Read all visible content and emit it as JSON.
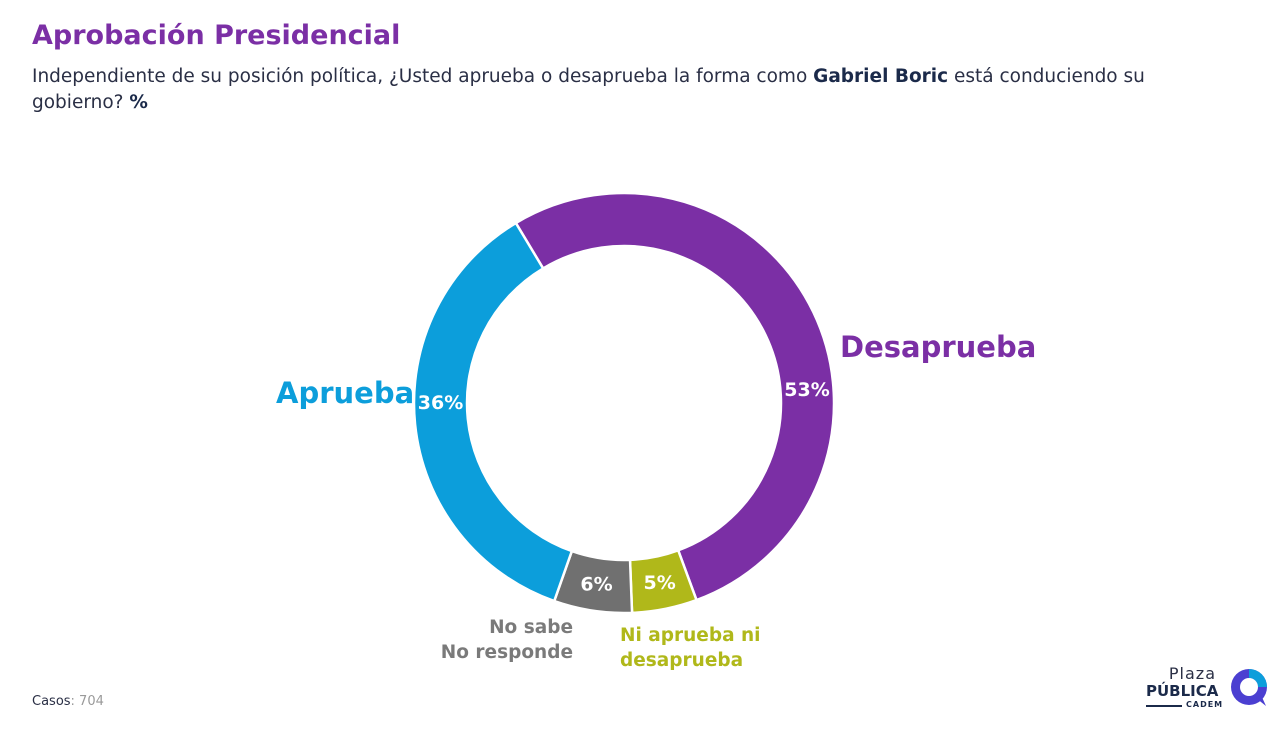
{
  "header": {
    "title": "Aprobación Presidencial",
    "subtitle_pre": "Independiente de su posición política, ¿Usted aprueba o desaprueba la forma como ",
    "subtitle_name": "Gabriel Boric",
    "subtitle_post": " está conduciendo su gobierno? ",
    "subtitle_unit": "%"
  },
  "chart_data": {
    "type": "pie",
    "donut": true,
    "unit": "%",
    "slices": [
      {
        "label": "Desaprueba",
        "label_lines": [
          "Desaprueba"
        ],
        "value": 53,
        "value_label": "53%",
        "color": "#7b2fa5",
        "text_color": "#7b2fa5"
      },
      {
        "label": "Ni aprueba ni desaprueba",
        "label_lines": [
          "Ni aprueba ni",
          "desaprueba"
        ],
        "value": 5,
        "value_label": "5%",
        "color": "#b0b81a",
        "text_color": "#b0b81a"
      },
      {
        "label": "No sabe No responde",
        "label_lines": [
          "No sabe",
          "No responde"
        ],
        "value": 6,
        "value_label": "6%",
        "color": "#707070",
        "text_color": "#7a7a7a"
      },
      {
        "label": "Aprueba",
        "label_lines": [
          "Aprueba"
        ],
        "value": 36,
        "value_label": "36%",
        "color": "#0c9edb",
        "text_color": "#0c9edb"
      }
    ]
  },
  "footer": {
    "casos_label": "Casos",
    "casos_value": ": 704"
  },
  "logo": {
    "plaza": "Plaza",
    "publica": "PÚBLICA",
    "cadem": "CADEM"
  }
}
